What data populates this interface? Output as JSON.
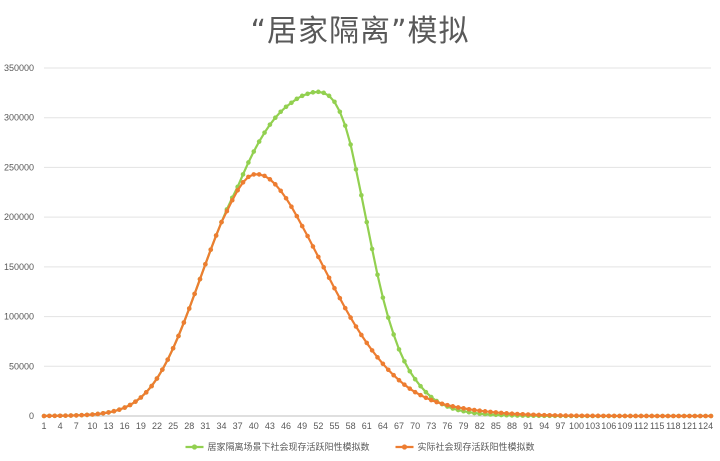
{
  "chart_data": {
    "type": "line",
    "title": "“居家隔离”模拟",
    "xlabel": "",
    "ylabel": "",
    "grid": true,
    "legend_position": "bottom",
    "ylim": [
      0,
      350000
    ],
    "yticks": [
      0,
      50000,
      100000,
      150000,
      200000,
      250000,
      300000,
      350000
    ],
    "xticks": [
      1,
      4,
      7,
      10,
      13,
      16,
      19,
      22,
      25,
      28,
      31,
      34,
      37,
      40,
      43,
      46,
      49,
      52,
      55,
      58,
      61,
      64,
      67,
      70,
      73,
      76,
      79,
      82,
      85,
      88,
      91,
      94,
      97,
      100,
      103,
      106,
      109,
      112,
      115,
      118,
      121,
      124
    ],
    "x_start": 1,
    "x_end": 125,
    "series": [
      {
        "name": "居家隔离场景下社会现存活跃阳性模拟数",
        "color": "#92D050",
        "values": [
          0,
          130,
          170,
          240,
          330,
          450,
          610,
          830,
          1120,
          1510,
          2030,
          2720,
          3630,
          4830,
          6400,
          8440,
          11060,
          14400,
          18600,
          23800,
          30100,
          37700,
          46600,
          56700,
          68100,
          80500,
          94000,
          108100,
          122800,
          137700,
          152600,
          167300,
          181500,
          195000,
          207800,
          219500,
          230500,
          243000,
          255000,
          266000,
          276000,
          285000,
          293000,
          300000,
          306000,
          311000,
          315000,
          319000,
          322000,
          324000,
          325500,
          326000,
          325000,
          322000,
          316000,
          306000,
          292000,
          273000,
          248000,
          222000,
          195000,
          168000,
          142000,
          119000,
          99000,
          82000,
          67000,
          55000,
          45000,
          37000,
          30000,
          24000,
          19000,
          15000,
          12000,
          9500,
          7500,
          6000,
          4800,
          3800,
          3000,
          2400,
          1900,
          1500,
          1200,
          950,
          750,
          600,
          480,
          380,
          300,
          240,
          190,
          150,
          120,
          95,
          75,
          60,
          48,
          38,
          30,
          24,
          19,
          15,
          12,
          10,
          8,
          6,
          5,
          4,
          3,
          3,
          2,
          2,
          1,
          1,
          1,
          1,
          0,
          0,
          0,
          0,
          0,
          0,
          0
        ]
      },
      {
        "name": "实际社会现存活跃阳性模拟数",
        "color": "#ED7D31",
        "values": [
          0,
          130,
          170,
          240,
          330,
          450,
          610,
          830,
          1120,
          1510,
          2030,
          2720,
          3630,
          4830,
          6400,
          8440,
          11060,
          14400,
          18600,
          23800,
          30100,
          37700,
          46600,
          56700,
          68100,
          80500,
          94000,
          108100,
          122800,
          137700,
          152600,
          167300,
          181500,
          195000,
          206000,
          217000,
          227000,
          235000,
          240500,
          243000,
          243000,
          241500,
          238000,
          233000,
          226500,
          219000,
          210500,
          201000,
          191000,
          181000,
          170500,
          160000,
          149500,
          139000,
          128500,
          118500,
          108500,
          99000,
          90000,
          81500,
          73500,
          66000,
          59000,
          52500,
          46500,
          41000,
          36000,
          31500,
          27500,
          24000,
          21000,
          18300,
          16000,
          14000,
          12300,
          10900,
          9700,
          8600,
          7700,
          6800,
          6000,
          5300,
          4700,
          4100,
          3600,
          3100,
          2700,
          2300,
          2000,
          1700,
          1450,
          1230,
          1040,
          880,
          740,
          620,
          520,
          430,
          360,
          300,
          250,
          205,
          170,
          140,
          115,
          95,
          78,
          64,
          52,
          43,
          35,
          29,
          23,
          19,
          15,
          12,
          10,
          8,
          6,
          5,
          4,
          3,
          2,
          2,
          1
        ]
      }
    ]
  }
}
